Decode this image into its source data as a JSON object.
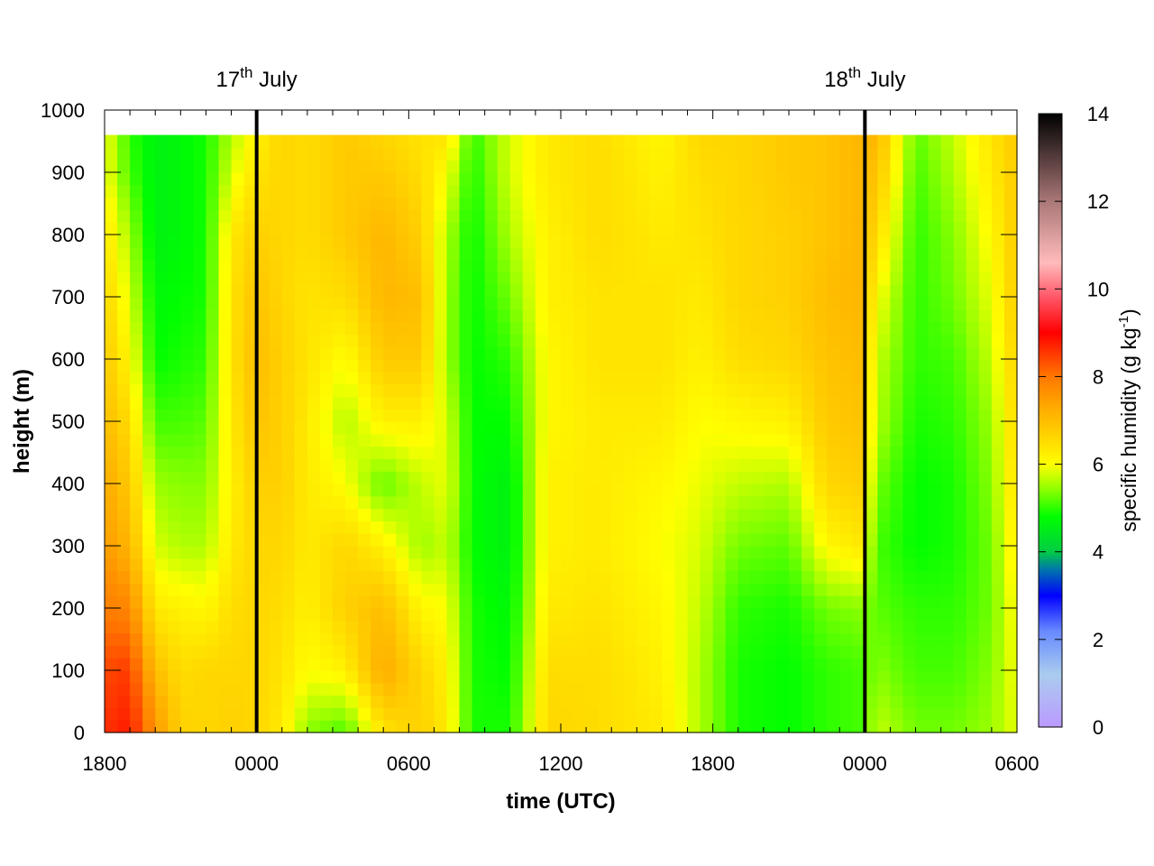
{
  "chart_data": {
    "type": "heatmap",
    "xlabel": "time (UTC)",
    "ylabel": "height (m)",
    "x_tick_labels": [
      "1800",
      "0000",
      "0600",
      "1200",
      "1800",
      "0000",
      "0600"
    ],
    "x_range_hours": [
      0,
      36
    ],
    "y_ticks": [
      0,
      100,
      200,
      300,
      400,
      500,
      600,
      700,
      800,
      900,
      1000
    ],
    "ylim": [
      0,
      1000
    ],
    "data_top_height": 960,
    "colorbar": {
      "label_main": "specific humidity (g kg",
      "label_exp": "-1",
      "label_close": ")",
      "ticks": [
        0,
        2,
        4,
        6,
        8,
        10,
        12,
        14
      ],
      "range": [
        0,
        14
      ],
      "stops": [
        {
          "v": 0,
          "color": "#bb99ff"
        },
        {
          "v": 1.2,
          "color": "#aaccee"
        },
        {
          "v": 2.2,
          "color": "#6688ff"
        },
        {
          "v": 3.0,
          "color": "#0000ff"
        },
        {
          "v": 3.6,
          "color": "#0077aa"
        },
        {
          "v": 4.0,
          "color": "#00cc44"
        },
        {
          "v": 4.8,
          "color": "#00ff00"
        },
        {
          "v": 5.4,
          "color": "#88ff00"
        },
        {
          "v": 6.0,
          "color": "#ffff00"
        },
        {
          "v": 6.5,
          "color": "#ffdd00"
        },
        {
          "v": 7.3,
          "color": "#ffaa00"
        },
        {
          "v": 8.0,
          "color": "#ff7700"
        },
        {
          "v": 9.0,
          "color": "#ff0000"
        },
        {
          "v": 9.8,
          "color": "#ff5566"
        },
        {
          "v": 10.6,
          "color": "#ffbbbb"
        },
        {
          "v": 12.0,
          "color": "#aa7777"
        },
        {
          "v": 14,
          "color": "#000000"
        }
      ]
    },
    "date_markers": [
      {
        "hour": 6,
        "day": "17",
        "suffix": "th",
        "month": "July"
      },
      {
        "hour": 30,
        "day": "18",
        "suffix": "th",
        "month": "July"
      }
    ],
    "field_anchor_profiles": {
      "heights": [
        0,
        100,
        200,
        300,
        400,
        500,
        600,
        700,
        800,
        900,
        960
      ],
      "profiles": [
        {
          "t": 0.0,
          "q": [
            8.6,
            8.4,
            7.9,
            7.5,
            7.3,
            7.0,
            6.8,
            6.6,
            6.4,
            6.0,
            6.0
          ]
        },
        {
          "t": 1.0,
          "q": [
            8.8,
            8.5,
            7.8,
            7.1,
            6.8,
            6.5,
            6.1,
            5.8,
            5.5,
            5.1,
            5.0
          ]
        },
        {
          "t": 2.0,
          "q": [
            7.6,
            7.0,
            6.3,
            5.8,
            5.5,
            5.1,
            4.8,
            4.7,
            4.6,
            4.6,
            4.6
          ]
        },
        {
          "t": 3.0,
          "q": [
            6.7,
            6.5,
            6.2,
            5.6,
            5.4,
            5.1,
            4.9,
            4.8,
            4.7,
            4.7,
            4.7
          ]
        },
        {
          "t": 4.0,
          "q": [
            6.6,
            6.6,
            6.1,
            5.6,
            5.4,
            5.2,
            5.0,
            4.9,
            4.9,
            4.9,
            4.9
          ]
        },
        {
          "t": 5.0,
          "q": [
            6.7,
            6.6,
            6.5,
            6.3,
            6.2,
            6.3,
            6.4,
            6.4,
            6.3,
            5.8,
            5.6
          ]
        },
        {
          "t": 6.0,
          "q": [
            6.6,
            6.6,
            6.6,
            6.6,
            6.7,
            6.9,
            7.0,
            6.9,
            6.7,
            6.4,
            6.2
          ]
        },
        {
          "t": 7.0,
          "q": [
            6.3,
            6.4,
            6.5,
            6.6,
            6.7,
            6.7,
            6.7,
            6.6,
            6.6,
            6.6,
            6.6
          ]
        },
        {
          "t": 8.0,
          "q": [
            5.4,
            6.0,
            6.2,
            6.3,
            6.3,
            6.3,
            6.4,
            6.4,
            6.5,
            6.5,
            6.5
          ]
        },
        {
          "t": 9.5,
          "q": [
            5.1,
            6.2,
            6.7,
            6.6,
            6.0,
            5.6,
            6.0,
            6.5,
            6.8,
            6.8,
            6.8
          ]
        },
        {
          "t": 11.0,
          "q": [
            6.4,
            7.3,
            7.0,
            6.2,
            5.2,
            6.2,
            6.8,
            7.1,
            7.1,
            6.8,
            6.6
          ]
        },
        {
          "t": 12.5,
          "q": [
            6.7,
            6.6,
            6.1,
            5.5,
            5.7,
            6.2,
            6.8,
            7.0,
            6.7,
            6.5,
            6.4
          ]
        },
        {
          "t": 13.5,
          "q": [
            6.3,
            6.2,
            6.0,
            5.7,
            5.9,
            5.8,
            5.5,
            5.5,
            5.6,
            6.0,
            6.4
          ]
        },
        {
          "t": 14.5,
          "q": [
            4.9,
            4.9,
            4.9,
            4.8,
            4.8,
            4.8,
            4.8,
            4.8,
            4.8,
            4.9,
            5.0
          ]
        },
        {
          "t": 16.0,
          "q": [
            4.9,
            4.8,
            4.7,
            4.6,
            4.6,
            4.8,
            5.0,
            5.3,
            5.6,
            5.8,
            5.8
          ]
        },
        {
          "t": 17.5,
          "q": [
            6.6,
            6.5,
            6.3,
            6.2,
            6.2,
            6.1,
            6.1,
            6.2,
            6.2,
            6.3,
            6.3
          ]
        },
        {
          "t": 19.5,
          "q": [
            6.5,
            6.5,
            6.4,
            6.3,
            6.3,
            6.3,
            6.4,
            6.4,
            6.5,
            6.5,
            6.5
          ]
        },
        {
          "t": 22.0,
          "q": [
            6.3,
            6.2,
            6.1,
            6.0,
            6.1,
            6.3,
            6.4,
            6.4,
            6.3,
            6.2,
            6.1
          ]
        },
        {
          "t": 23.5,
          "q": [
            5.6,
            5.6,
            5.7,
            5.8,
            5.9,
            6.0,
            6.2,
            6.3,
            6.4,
            6.5,
            6.6
          ]
        },
        {
          "t": 25.0,
          "q": [
            4.9,
            4.9,
            5.0,
            5.3,
            5.7,
            6.1,
            6.5,
            6.6,
            6.6,
            6.6,
            6.6
          ]
        },
        {
          "t": 27.0,
          "q": [
            4.8,
            4.8,
            4.9,
            5.2,
            5.6,
            6.2,
            6.6,
            6.7,
            6.7,
            6.8,
            6.8
          ]
        },
        {
          "t": 28.5,
          "q": [
            5.0,
            5.0,
            5.3,
            6.1,
            6.6,
            6.8,
            6.9,
            7.0,
            6.9,
            6.9,
            6.9
          ]
        },
        {
          "t": 29.8,
          "q": [
            5.1,
            5.1,
            5.4,
            6.3,
            6.7,
            6.9,
            7.0,
            7.1,
            7.1,
            7.1,
            7.1
          ]
        },
        {
          "t": 30.5,
          "q": [
            5.7,
            5.4,
            5.2,
            5.1,
            5.3,
            5.6,
            5.7,
            6.0,
            6.5,
            6.9,
            7.1
          ]
        },
        {
          "t": 32.0,
          "q": [
            5.3,
            5.1,
            5.0,
            4.8,
            4.8,
            4.9,
            5.0,
            5.0,
            5.0,
            5.1,
            5.2
          ]
        },
        {
          "t": 33.5,
          "q": [
            5.3,
            5.1,
            5.0,
            4.9,
            4.9,
            5.0,
            5.1,
            5.3,
            5.4,
            5.6,
            5.7
          ]
        },
        {
          "t": 35.0,
          "q": [
            5.5,
            5.4,
            5.3,
            5.3,
            5.4,
            5.5,
            5.7,
            5.9,
            6.1,
            6.3,
            6.4
          ]
        },
        {
          "t": 36.0,
          "q": [
            5.9,
            6.0,
            6.1,
            6.3,
            6.5,
            6.6,
            6.7,
            6.8,
            6.8,
            6.8,
            6.8
          ]
        }
      ]
    }
  }
}
